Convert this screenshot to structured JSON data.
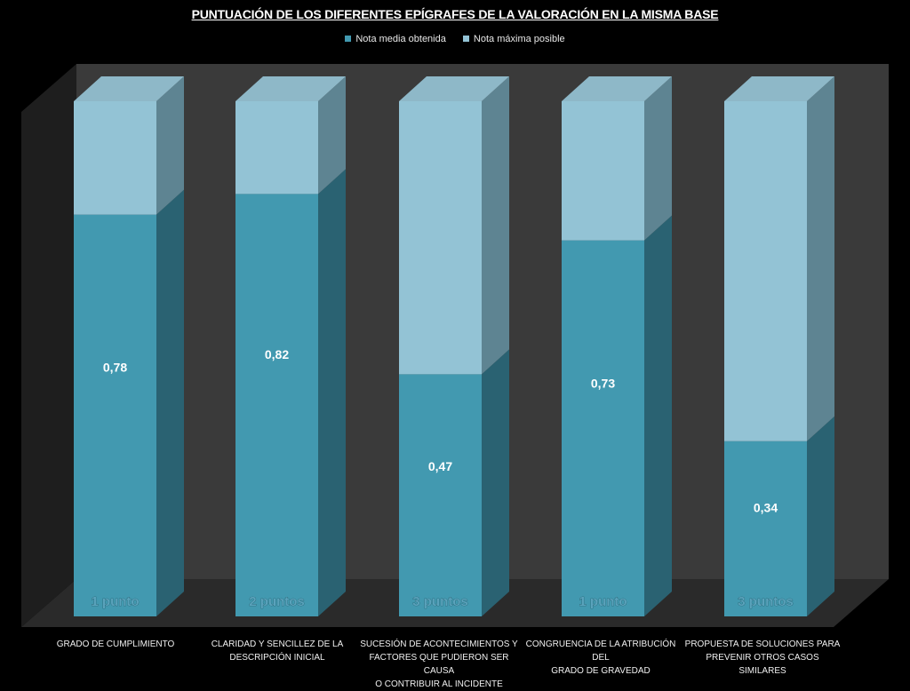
{
  "chart_data": {
    "type": "bar",
    "stacked": true,
    "three_d": true,
    "title": "PUNTUACIÓN DE LOS DIFERENTES EPÍGRAFES DE LA VALORACIÓN EN LA MISMA BASE",
    "legend": {
      "position": "top",
      "entries": [
        "Nota media obtenida",
        "Nota máxima posible"
      ]
    },
    "categories": [
      "GRADO DE CUMPLIMIENTO",
      "CLARIDAD Y SENCILLEZ DE LA\nDESCRIPCIÓN INICIAL",
      "SUCESIÓN DE ACONTECIMIENTOS Y\nFACTORES QUE PUDIERON SER CAUSA\nO CONTRIBUIR AL INCIDENTE",
      "CONGRUENCIA DE LA ATRIBUCIÓN DEL\nGRADO DE GRAVEDAD",
      "PROPUESTA DE SOLUCIONES PARA\nPREVENIR OTROS CASOS SIMILARES"
    ],
    "series": [
      {
        "name": "Nota media obtenida",
        "values": [
          0.78,
          0.82,
          0.47,
          0.73,
          0.34
        ],
        "color": "#4299b0"
      },
      {
        "name": "Nota máxima posible",
        "values": [
          0.22,
          0.18,
          0.53,
          0.27,
          0.66
        ],
        "color": "#93c3d5"
      }
    ],
    "value_labels": [
      "0,78",
      "0,82",
      "0,47",
      "0,73",
      "0,34"
    ],
    "max_points_labels": [
      "1 punto",
      "2 puntos",
      "3 puntos",
      "1 punto",
      "3 puntos"
    ],
    "ylim": [
      0,
      1
    ],
    "grid": false
  },
  "colors": {
    "background": "#000000",
    "wall": "#3a3a3a",
    "floor": "#2a2a2a",
    "obtained_front": "#4299b0",
    "obtained_side": "#2a6272",
    "obtained_top": "#5aafc5",
    "max_front": "#93c3d5",
    "max_side": "#5e8492",
    "max_top": "#8eb8c8",
    "label_text": "#ffffff",
    "points_text": "#5aa3bc"
  }
}
